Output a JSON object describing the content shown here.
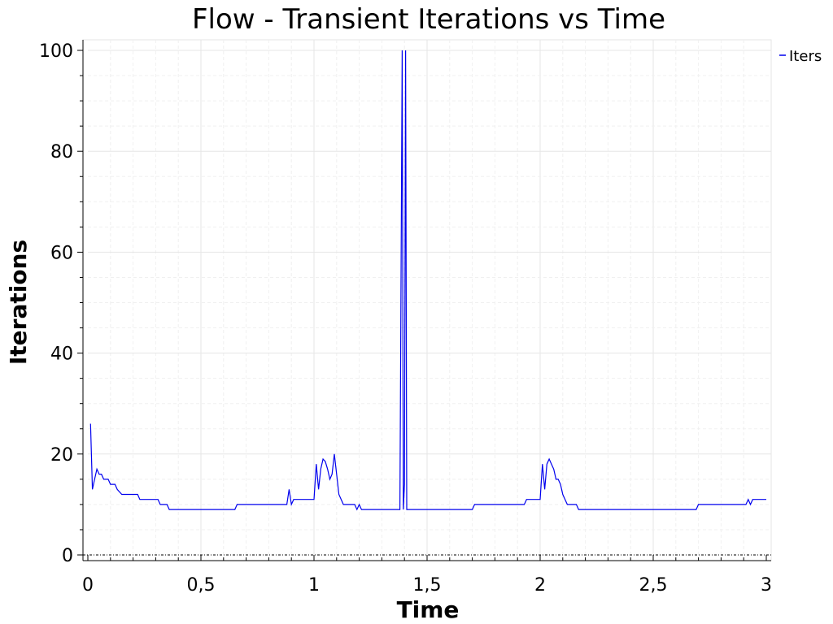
{
  "chart_data": {
    "type": "line",
    "title": "Flow - Transient Iterations vs Time",
    "xlabel": "Time",
    "ylabel": "Iterations",
    "xlim": [
      0,
      3
    ],
    "ylim": [
      0,
      100
    ],
    "x_ticks": [
      0,
      0.5,
      1,
      1.5,
      2,
      2.5,
      3
    ],
    "x_tick_labels": [
      "0",
      "0,5",
      "1",
      "1,5",
      "2",
      "2,5",
      "3"
    ],
    "y_ticks": [
      0,
      20,
      40,
      60,
      80,
      100
    ],
    "y_tick_labels": [
      "0",
      "20",
      "40",
      "60",
      "80",
      "100"
    ],
    "grid": true,
    "legend": {
      "position": "top-right",
      "entries": [
        "Iters"
      ]
    },
    "series_color": "#0000ee",
    "series": [
      {
        "name": "Iters",
        "points": [
          [
            0.012,
            26
          ],
          [
            0.02,
            13
          ],
          [
            0.03,
            15
          ],
          [
            0.04,
            17
          ],
          [
            0.05,
            16
          ],
          [
            0.06,
            16
          ],
          [
            0.07,
            15
          ],
          [
            0.09,
            15
          ],
          [
            0.1,
            14
          ],
          [
            0.12,
            14
          ],
          [
            0.13,
            13
          ],
          [
            0.15,
            12
          ],
          [
            0.22,
            12
          ],
          [
            0.23,
            11
          ],
          [
            0.31,
            11
          ],
          [
            0.32,
            10
          ],
          [
            0.35,
            10
          ],
          [
            0.36,
            9
          ],
          [
            0.65,
            9
          ],
          [
            0.66,
            10
          ],
          [
            0.88,
            10
          ],
          [
            0.89,
            13
          ],
          [
            0.9,
            10
          ],
          [
            0.91,
            11
          ],
          [
            1.0,
            11
          ],
          [
            1.01,
            18
          ],
          [
            1.02,
            13
          ],
          [
            1.03,
            17
          ],
          [
            1.04,
            19
          ],
          [
            1.05,
            18.5
          ],
          [
            1.06,
            17
          ],
          [
            1.07,
            15
          ],
          [
            1.08,
            16
          ],
          [
            1.09,
            20
          ],
          [
            1.1,
            16
          ],
          [
            1.11,
            12
          ],
          [
            1.12,
            11
          ],
          [
            1.13,
            10
          ],
          [
            1.18,
            10
          ],
          [
            1.19,
            9
          ],
          [
            1.2,
            10
          ],
          [
            1.21,
            9
          ],
          [
            1.38,
            9
          ],
          [
            1.39,
            100
          ],
          [
            1.395,
            9
          ],
          [
            1.4,
            14
          ],
          [
            1.405,
            100
          ],
          [
            1.41,
            9
          ],
          [
            1.7,
            9
          ],
          [
            1.71,
            10
          ],
          [
            1.93,
            10
          ],
          [
            1.94,
            11
          ],
          [
            2.0,
            11
          ],
          [
            2.01,
            18
          ],
          [
            2.02,
            13
          ],
          [
            2.03,
            18
          ],
          [
            2.04,
            19
          ],
          [
            2.05,
            18
          ],
          [
            2.06,
            17
          ],
          [
            2.07,
            15
          ],
          [
            2.08,
            15
          ],
          [
            2.09,
            14
          ],
          [
            2.1,
            12
          ],
          [
            2.11,
            11
          ],
          [
            2.12,
            10
          ],
          [
            2.16,
            10
          ],
          [
            2.17,
            9
          ],
          [
            2.69,
            9
          ],
          [
            2.7,
            10
          ],
          [
            2.91,
            10
          ],
          [
            2.92,
            11
          ],
          [
            2.93,
            10
          ],
          [
            2.94,
            11
          ],
          [
            3.0,
            11
          ]
        ]
      }
    ]
  }
}
